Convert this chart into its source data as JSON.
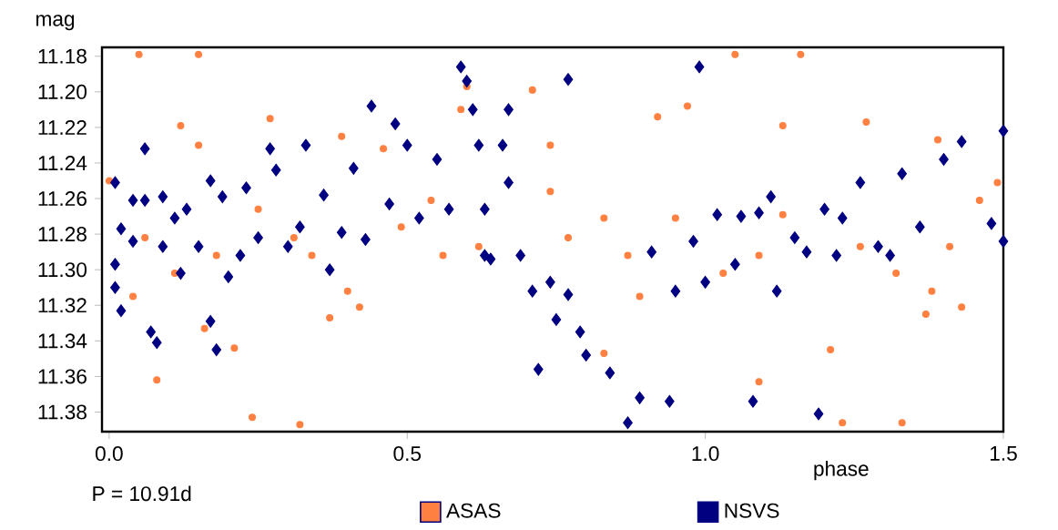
{
  "chart_data": {
    "type": "scatter",
    "xlabel": "phase",
    "ylabel": "mag",
    "xlim": [
      -0.012,
      1.5
    ],
    "ylim": [
      11.391,
      11.175
    ],
    "xticks": [
      {
        "value": 0,
        "label": "0.0"
      },
      {
        "value": 0.5,
        "label": "0.5"
      },
      {
        "value": 1.0,
        "label": "1.0"
      },
      {
        "value": 1.5,
        "label": "1.5"
      }
    ],
    "yticks": [
      {
        "value": 11.18,
        "label": "11.18"
      },
      {
        "value": 11.2,
        "label": "11.20"
      },
      {
        "value": 11.22,
        "label": "11.22"
      },
      {
        "value": 11.24,
        "label": "11.24"
      },
      {
        "value": 11.26,
        "label": "11.26"
      },
      {
        "value": 11.28,
        "label": "11.28"
      },
      {
        "value": 11.3,
        "label": "11.30"
      },
      {
        "value": 11.32,
        "label": "11.32"
      },
      {
        "value": 11.34,
        "label": "11.34"
      },
      {
        "value": 11.36,
        "label": "11.36"
      },
      {
        "value": 11.38,
        "label": "11.38"
      }
    ],
    "legend": "bottom",
    "annotations": [
      "P = 10.91d"
    ],
    "series": [
      {
        "name": "ASAS",
        "color": "#ff8040",
        "marker": "circle",
        "x": [
          0.05,
          0.15,
          0.0,
          0.12,
          0.15,
          0.27,
          0.39,
          0.46,
          0.59,
          0.6,
          0.71,
          0.74,
          1.05,
          1.16,
          0.92,
          0.97,
          1.13,
          1.27,
          1.39,
          0.04,
          0.08,
          0.24,
          0.32,
          0.21,
          0.16,
          0.37,
          0.42,
          0.4,
          0.83,
          1.23,
          1.33,
          1.09,
          1.21,
          1.37,
          1.43,
          1.38,
          0.89,
          0.34,
          0.31,
          0.49,
          0.54,
          0.56,
          0.62,
          0.74,
          0.77,
          0.83,
          0.87,
          0.95,
          1.03,
          1.09,
          1.13,
          1.26,
          1.32,
          1.41,
          1.46,
          1.49,
          0.11,
          0.18,
          0.06,
          0.25
        ],
        "values": [
          11.179,
          11.179,
          11.25,
          11.219,
          11.23,
          11.215,
          11.225,
          11.232,
          11.21,
          11.197,
          11.199,
          11.23,
          11.179,
          11.179,
          11.214,
          11.208,
          11.219,
          11.217,
          11.227,
          11.315,
          11.362,
          11.383,
          11.387,
          11.344,
          11.333,
          11.327,
          11.321,
          11.312,
          11.347,
          11.386,
          11.386,
          11.363,
          11.345,
          11.325,
          11.321,
          11.312,
          11.315,
          11.292,
          11.282,
          11.276,
          11.261,
          11.292,
          11.287,
          11.256,
          11.282,
          11.271,
          11.292,
          11.271,
          11.302,
          11.292,
          11.269,
          11.287,
          11.302,
          11.287,
          11.261,
          11.251,
          11.302,
          11.292,
          11.282,
          11.266
        ]
      },
      {
        "name": "NSVS",
        "color": "#000080",
        "marker": "diamond",
        "x": [
          0.01,
          0.01,
          0.01,
          0.02,
          0.02,
          0.04,
          0.04,
          0.06,
          0.06,
          0.07,
          0.08,
          0.09,
          0.09,
          0.11,
          0.12,
          0.13,
          0.15,
          0.17,
          0.17,
          0.18,
          0.19,
          0.2,
          0.22,
          0.23,
          0.25,
          0.27,
          0.28,
          0.3,
          0.32,
          0.33,
          0.36,
          0.37,
          0.39,
          0.41,
          0.43,
          0.44,
          0.47,
          0.48,
          0.5,
          0.52,
          0.55,
          0.57,
          0.59,
          0.6,
          0.61,
          0.62,
          0.63,
          0.63,
          0.64,
          0.66,
          0.67,
          0.67,
          0.69,
          0.71,
          0.72,
          0.74,
          0.75,
          0.77,
          0.79,
          0.8,
          0.84,
          0.87,
          0.89,
          0.91,
          0.94,
          0.95,
          0.98,
          0.99,
          1.0,
          1.02,
          1.05,
          1.06,
          1.08,
          1.09,
          1.11,
          1.12,
          1.15,
          1.17,
          1.19,
          1.2,
          1.22,
          1.23,
          1.26,
          1.29,
          1.31,
          1.33,
          1.36,
          1.4,
          1.43,
          1.48,
          1.5,
          1.5,
          0.77
        ],
        "values": [
          11.251,
          11.31,
          11.297,
          11.277,
          11.323,
          11.261,
          11.284,
          11.232,
          11.261,
          11.335,
          11.341,
          11.259,
          11.287,
          11.271,
          11.302,
          11.266,
          11.287,
          11.25,
          11.329,
          11.345,
          11.259,
          11.304,
          11.292,
          11.254,
          11.282,
          11.232,
          11.244,
          11.287,
          11.276,
          11.23,
          11.258,
          11.3,
          11.279,
          11.243,
          11.283,
          11.208,
          11.263,
          11.218,
          11.23,
          11.271,
          11.238,
          11.266,
          11.186,
          11.194,
          11.21,
          11.23,
          11.266,
          11.292,
          11.294,
          11.23,
          11.21,
          11.251,
          11.292,
          11.312,
          11.356,
          11.307,
          11.328,
          11.314,
          11.335,
          11.348,
          11.358,
          11.386,
          11.372,
          11.29,
          11.374,
          11.312,
          11.284,
          11.186,
          11.307,
          11.269,
          11.297,
          11.27,
          11.374,
          11.268,
          11.259,
          11.312,
          11.282,
          11.29,
          11.381,
          11.266,
          11.292,
          11.271,
          11.251,
          11.287,
          11.292,
          11.246,
          11.276,
          11.238,
          11.228,
          11.274,
          11.222,
          11.284,
          11.193
        ]
      }
    ]
  }
}
